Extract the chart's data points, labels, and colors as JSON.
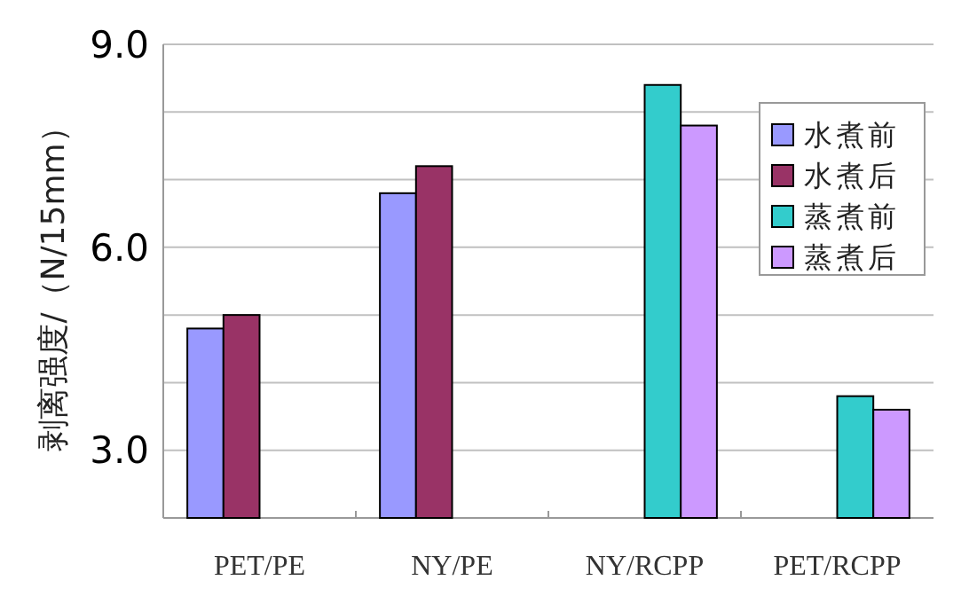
{
  "chart_data": {
    "type": "bar",
    "ylabel": "剥离强度/（N/15mm）",
    "categories": [
      "PET/PE",
      "NY/PE",
      "NY/RCPP",
      "PET/RCPP"
    ],
    "series": [
      {
        "name": "水煮前",
        "color": "#9999ff",
        "values": [
          4.8,
          6.8,
          null,
          null
        ]
      },
      {
        "name": "水煮后",
        "color": "#993366",
        "values": [
          5.0,
          7.2,
          null,
          null
        ]
      },
      {
        "name": "蒸煮前",
        "color": "#33cccc",
        "values": [
          null,
          null,
          8.4,
          3.8
        ]
      },
      {
        "name": "蒸煮后",
        "color": "#cc99ff",
        "values": [
          null,
          null,
          7.8,
          3.6
        ]
      }
    ],
    "ylim": [
      2.0,
      9.0
    ],
    "yticks": [
      {
        "value": 3,
        "label": "3.0"
      },
      {
        "value": 4,
        "label": null
      },
      {
        "value": 5,
        "label": null
      },
      {
        "value": 6,
        "label": "6.0"
      },
      {
        "value": 7,
        "label": null
      },
      {
        "value": 8,
        "label": null
      },
      {
        "value": 9,
        "label": "9.0"
      }
    ],
    "grid": "y",
    "legend": "top right"
  }
}
